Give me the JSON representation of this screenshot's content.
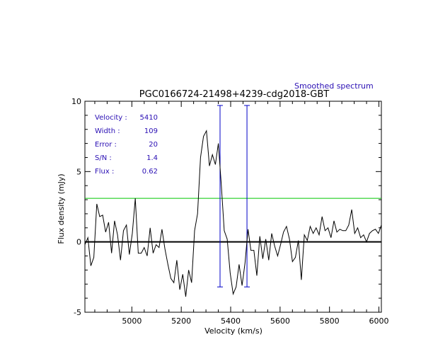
{
  "chart_data": {
    "type": "line",
    "corner_label": "Smoothed spectrum",
    "title": "PGC0166724-21498+4239-cdg2018-GBT",
    "xlabel": "Velocity (km/s)",
    "ylabel": "Flux density (mJy)",
    "xlim": [
      4810,
      6010
    ],
    "ylim": [
      -5,
      10
    ],
    "xticks": [
      5000,
      5200,
      5400,
      5600,
      5800,
      6000
    ],
    "xtick_labels": [
      "5000",
      "5200",
      "5400",
      "5600",
      "5800",
      "6000"
    ],
    "yticks": [
      -5,
      0,
      5,
      10
    ],
    "ytick_labels": [
      "-5",
      "0",
      "5",
      "10"
    ],
    "legend": [
      {
        "label": "Velocity :",
        "value": "5410"
      },
      {
        "label": "Width  :",
        "value": "109"
      },
      {
        "label": "Error  :",
        "value": "20"
      },
      {
        "label": "S/N   :",
        "value": "1.4"
      },
      {
        "label": "Flux  :",
        "value": "0.62"
      }
    ],
    "threshold_y": 3.1,
    "markers_x": [
      5357,
      5466
    ],
    "marker_y_range": [
      -3.2,
      9.7
    ],
    "colors": {
      "spectrum": "#000000",
      "zero_line": "#000000",
      "threshold": "#00c800",
      "markers": "#0000c8",
      "labels": "#2a0fb4"
    },
    "series": [
      {
        "x": [
          4810,
          4822,
          4834,
          4846,
          4858,
          4870,
          4882,
          4894,
          4906,
          4918,
          4930,
          4942,
          4954,
          4966,
          4978,
          4990,
          5002,
          5014,
          5026,
          5038,
          5050,
          5062,
          5074,
          5086,
          5098,
          5110,
          5122,
          5134,
          5146,
          5158,
          5170,
          5182,
          5194,
          5206,
          5218,
          5230,
          5242,
          5254,
          5266,
          5278,
          5290,
          5302,
          5314,
          5326,
          5338,
          5350,
          5362,
          5374,
          5386,
          5398,
          5410,
          5422,
          5434,
          5446,
          5458,
          5470,
          5482,
          5494,
          5506,
          5518,
          5530,
          5542,
          5554,
          5566,
          5578,
          5590,
          5602,
          5614,
          5626,
          5638,
          5650,
          5662,
          5674,
          5686,
          5698,
          5710,
          5722,
          5734,
          5746,
          5758,
          5770,
          5782,
          5794,
          5806,
          5818,
          5830,
          5842,
          5854,
          5866,
          5878,
          5890,
          5902,
          5914,
          5926,
          5938,
          5950,
          5962,
          5974,
          5986,
          5998,
          6010
        ],
        "y": [
          -0.2,
          0.3,
          -1.7,
          -1.1,
          2.7,
          1.8,
          1.9,
          0.7,
          1.4,
          -0.8,
          1.5,
          0.5,
          -1.3,
          0.8,
          1.2,
          -0.9,
          0.6,
          3.1,
          -0.8,
          -0.8,
          -0.4,
          -1.0,
          1.0,
          -0.8,
          -0.2,
          -0.4,
          0.9,
          -0.5,
          -1.6,
          -2.6,
          -2.9,
          -1.3,
          -3.4,
          -2.3,
          -3.9,
          -2.0,
          -2.9,
          0.8,
          2.0,
          6.0,
          7.5,
          7.9,
          5.4,
          6.2,
          5.5,
          7.0,
          4.1,
          0.8,
          0.2,
          -2.2,
          -3.7,
          -3.2,
          -1.6,
          -3.1,
          -1.5,
          0.9,
          -0.6,
          -0.6,
          -2.4,
          0.4,
          -1.2,
          0.2,
          -1.3,
          0.6,
          -0.3,
          -1.0,
          -0.2,
          0.7,
          1.1,
          0.2,
          -1.4,
          -1.1,
          0.1,
          -2.7,
          0.5,
          0.1,
          1.1,
          0.6,
          1.0,
          0.5,
          1.8,
          0.8,
          1.0,
          0.3,
          1.5,
          0.7,
          0.9,
          0.8,
          0.8,
          1.2,
          2.3,
          0.6,
          1.0,
          0.3,
          0.5,
          0.0,
          0.6,
          0.8,
          0.9,
          0.6,
          1.2
        ]
      }
    ]
  }
}
